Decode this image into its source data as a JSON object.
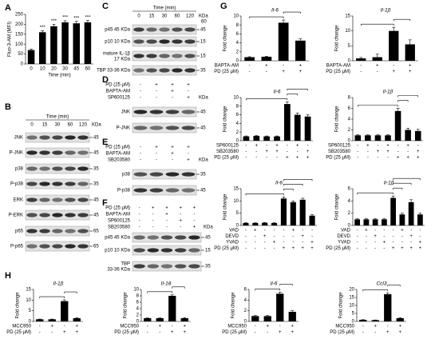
{
  "panel_labels": [
    "A",
    "B",
    "C",
    "D",
    "E",
    "F",
    "G",
    "H"
  ],
  "chart_data": [
    {
      "type": "bar",
      "ylabel": "Fluo-3-AM (MFI)",
      "xlabel": "Time (min)",
      "categories": [
        "0",
        "10",
        "20",
        "30",
        "45",
        "60"
      ],
      "values": [
        70,
        160,
        190,
        210,
        205,
        210
      ],
      "errors": [
        5,
        8,
        10,
        8,
        10,
        9
      ],
      "significance": [
        null,
        "***",
        "***",
        "***",
        "***",
        "***"
      ],
      "ylim": [
        0,
        250
      ],
      "yticks": [
        0,
        50,
        100,
        150,
        200,
        250
      ],
      "color": "#000000"
    },
    {
      "type": "bar",
      "title": "Il-6",
      "ylabel": "Fold change",
      "values": [
        0.8,
        0.9,
        8.5,
        4.5
      ],
      "errors": [
        0.1,
        0.1,
        0.6,
        0.4
      ],
      "ylim": [
        0,
        10
      ],
      "yticks": [
        0,
        2,
        4,
        6,
        8,
        10
      ],
      "color": "#000000",
      "conditions": [
        {
          "name": "BAPTA-AM",
          "signs": [
            "-",
            "+",
            "-",
            "+"
          ]
        },
        {
          "name": "PD (25 μM)",
          "signs": [
            "-",
            "-",
            "+",
            "+"
          ]
        }
      ],
      "comparisons": [
        {
          "from": 0,
          "to": 2,
          "label": "***"
        },
        {
          "from": 2,
          "to": 3,
          "label": "***"
        }
      ]
    },
    {
      "type": "bar",
      "title": "Il-1β",
      "ylabel": "Fold change",
      "values": [
        0.8,
        1.2,
        10,
        5.5
      ],
      "errors": [
        0.3,
        1,
        1.2,
        1.5
      ],
      "ylim": [
        0,
        15
      ],
      "yticks": [
        0,
        5,
        10,
        15
      ],
      "color": "#000000",
      "conditions": [
        {
          "name": "BAPTA-AM",
          "signs": [
            "-",
            "+",
            "-",
            "+"
          ]
        },
        {
          "name": "PD (25 μM)",
          "signs": [
            "-",
            "-",
            "+",
            "+"
          ]
        }
      ],
      "comparisons": [
        {
          "from": 0,
          "to": 2,
          "label": "***"
        },
        {
          "from": 2,
          "to": 3,
          "label": "***"
        }
      ]
    },
    {
      "type": "bar",
      "title": "Il-6",
      "ylabel": "Fold change",
      "values": [
        1,
        1.1,
        1,
        1,
        8.5,
        6,
        5.6
      ],
      "errors": [
        0.1,
        0.1,
        0.1,
        0.1,
        0.5,
        0.4,
        0.4
      ],
      "ylim": [
        0,
        10
      ],
      "yticks": [
        0,
        2,
        4,
        6,
        8,
        10
      ],
      "color": "#000000",
      "conditions": [
        {
          "name": "SP600125",
          "signs": [
            "-",
            "+",
            "-",
            "+",
            "-",
            "+",
            "-"
          ]
        },
        {
          "name": "SB203580",
          "signs": [
            "-",
            "-",
            "+",
            "+",
            "-",
            "-",
            "+"
          ]
        },
        {
          "name": "PD (25 μM)",
          "signs": [
            "-",
            "-",
            "-",
            "-",
            "+",
            "+",
            "+"
          ]
        }
      ],
      "comparisons": [
        {
          "from": 0,
          "to": 4,
          "label": "***"
        },
        {
          "from": 4,
          "to": 5,
          "label": "**"
        },
        {
          "from": 4,
          "to": 6,
          "label": "**"
        }
      ]
    },
    {
      "type": "bar",
      "title": "Il-1β",
      "ylabel": "Fold change",
      "values": [
        1,
        1,
        1,
        1,
        5.5,
        2,
        1.8
      ],
      "errors": [
        0.1,
        0.1,
        0.1,
        0.1,
        0.5,
        0.3,
        0.3
      ],
      "ylim": [
        0,
        8
      ],
      "yticks": [
        0,
        2,
        4,
        6,
        8
      ],
      "color": "#000000",
      "conditions": [
        {
          "name": "SP600125",
          "signs": [
            "-",
            "+",
            "-",
            "+",
            "-",
            "+",
            "-"
          ]
        },
        {
          "name": "SB203580",
          "signs": [
            "-",
            "-",
            "+",
            "+",
            "-",
            "-",
            "+"
          ]
        },
        {
          "name": "PD (25 μM)",
          "signs": [
            "-",
            "-",
            "-",
            "-",
            "+",
            "+",
            "+"
          ]
        }
      ],
      "comparisons": [
        {
          "from": 0,
          "to": 4,
          "label": "***"
        },
        {
          "from": 4,
          "to": 5,
          "label": "***"
        },
        {
          "from": 4,
          "to": 6,
          "label": "***"
        }
      ]
    },
    {
      "type": "bar",
      "title": "Il-6",
      "ylabel": "Fold change",
      "values": [
        1,
        1,
        1.1,
        1,
        11,
        9.5,
        10.5,
        4
      ],
      "errors": [
        0.1,
        0.1,
        0.1,
        0.1,
        0.6,
        0.5,
        0.6,
        0.4
      ],
      "ylim": [
        0,
        15
      ],
      "yticks": [
        0,
        5,
        10,
        15
      ],
      "color": "#000000",
      "conditions": [
        {
          "name": "VAD",
          "signs": [
            "-",
            "+",
            "-",
            "-",
            "-",
            "+",
            "-",
            "-"
          ]
        },
        {
          "name": "DEVD",
          "signs": [
            "-",
            "-",
            "+",
            "-",
            "-",
            "-",
            "+",
            "-"
          ]
        },
        {
          "name": "YVAD",
          "signs": [
            "-",
            "-",
            "-",
            "+",
            "-",
            "-",
            "-",
            "+"
          ]
        },
        {
          "name": "PD (25 μM)",
          "signs": [
            "-",
            "-",
            "-",
            "-",
            "+",
            "+",
            "+",
            "+"
          ]
        }
      ],
      "comparisons": [
        {
          "from": 0,
          "to": 4,
          "label": "***"
        },
        {
          "from": 4,
          "to": 5,
          "label": "*"
        },
        {
          "from": 4,
          "to": 6,
          "label": "ns"
        },
        {
          "from": 4,
          "to": 7,
          "label": "***"
        }
      ]
    },
    {
      "type": "bar",
      "title": "Il-1β",
      "ylabel": "Fold change",
      "values": [
        1,
        1,
        1,
        1,
        4.5,
        1.8,
        3.8,
        1.8
      ],
      "errors": [
        0.1,
        0.1,
        0.1,
        0.1,
        0.3,
        0.2,
        0.4,
        0.2
      ],
      "ylim": [
        0,
        6
      ],
      "yticks": [
        0,
        2,
        4,
        6
      ],
      "color": "#000000",
      "conditions": [
        {
          "name": "VAD",
          "signs": [
            "-",
            "+",
            "-",
            "-",
            "-",
            "+",
            "-",
            "-"
          ]
        },
        {
          "name": "DEVD",
          "signs": [
            "-",
            "-",
            "+",
            "-",
            "-",
            "-",
            "+",
            "-"
          ]
        },
        {
          "name": "YVAD",
          "signs": [
            "-",
            "-",
            "-",
            "+",
            "-",
            "-",
            "-",
            "+"
          ]
        },
        {
          "name": "PD (25 μM)",
          "signs": [
            "-",
            "-",
            "-",
            "-",
            "+",
            "+",
            "+",
            "+"
          ]
        }
      ],
      "comparisons": [
        {
          "from": 0,
          "to": 4,
          "label": "***"
        },
        {
          "from": 4,
          "to": 5,
          "label": "***"
        },
        {
          "from": 4,
          "to": 6,
          "label": "ns"
        },
        {
          "from": 4,
          "to": 7,
          "label": "***"
        }
      ]
    },
    {
      "type": "bar",
      "title": "Il-1β",
      "ylabel": "Fold change",
      "values": [
        1,
        1,
        9.5,
        1.5
      ],
      "errors": [
        0.1,
        0.1,
        0.6,
        0.3
      ],
      "ylim": [
        0,
        15
      ],
      "yticks": [
        0,
        5,
        10,
        15
      ],
      "color": "#000000",
      "conditions": [
        {
          "name": "MCC950",
          "signs": [
            "-",
            "+",
            "-",
            "+"
          ]
        },
        {
          "name": "PD (25 μM)",
          "signs": [
            "-",
            "-",
            "+",
            "+"
          ]
        }
      ],
      "comparisons": [
        {
          "from": 0,
          "to": 2,
          "label": "***"
        },
        {
          "from": 2,
          "to": 3,
          "label": "***"
        }
      ]
    },
    {
      "type": "bar",
      "title": "Il-18",
      "ylabel": "Fold change",
      "values": [
        1,
        1,
        8,
        1
      ],
      "errors": [
        0.1,
        0.1,
        0.3,
        0.2
      ],
      "ylim": [
        0,
        10
      ],
      "yticks": [
        0,
        2,
        4,
        6,
        8,
        10
      ],
      "color": "#000000",
      "conditions": [
        {
          "name": "MCC950",
          "signs": [
            "-",
            "+",
            "-",
            "+"
          ]
        },
        {
          "name": "PD (25 μM)",
          "signs": [
            "-",
            "-",
            "+",
            "+"
          ]
        }
      ],
      "comparisons": [
        {
          "from": 0,
          "to": 2,
          "label": "***"
        },
        {
          "from": 2,
          "to": 3,
          "label": "***"
        }
      ]
    },
    {
      "type": "bar",
      "title": "Il-6",
      "ylabel": "Fold change",
      "values": [
        1,
        1,
        5.2,
        1.8
      ],
      "errors": [
        0.1,
        0.1,
        0.3,
        0.2
      ],
      "ylim": [
        0,
        6
      ],
      "yticks": [
        0,
        2,
        4,
        6
      ],
      "color": "#000000",
      "conditions": [
        {
          "name": "MCC950",
          "signs": [
            "-",
            "+",
            "-",
            "+"
          ]
        },
        {
          "name": "PD (25 μM)",
          "signs": [
            "-",
            "-",
            "+",
            "+"
          ]
        }
      ],
      "comparisons": [
        {
          "from": 0,
          "to": 2,
          "label": "***"
        },
        {
          "from": 2,
          "to": 3,
          "label": "***"
        }
      ]
    },
    {
      "type": "bar",
      "title": "Ccl3",
      "ylabel": "Fold change",
      "values": [
        1,
        0.8,
        17,
        2
      ],
      "errors": [
        0.1,
        0.1,
        0.8,
        0.3
      ],
      "ylim": [
        0,
        20
      ],
      "yticks": [
        0,
        5,
        10,
        15,
        20
      ],
      "color": "#000000",
      "conditions": [
        {
          "name": "MCC950",
          "signs": [
            "-",
            "+",
            "-",
            "+"
          ]
        },
        {
          "name": "PD (25 μM)",
          "signs": [
            "-",
            "-",
            "+",
            "+"
          ]
        }
      ],
      "comparisons": [
        {
          "from": 0,
          "to": 2,
          "label": "***"
        },
        {
          "from": 2,
          "to": 3,
          "label": "***"
        }
      ]
    }
  ],
  "blots": [
    {
      "header": "Time (min)",
      "columns": [
        "0",
        "15",
        "30",
        "60",
        "120"
      ],
      "unit": "KDa",
      "rows": [
        {
          "label": "JNK",
          "kda": "45"
        },
        {
          "label": "P-JNK",
          "kda": "45"
        },
        {
          "label": "p38",
          "kda": "35"
        },
        {
          "label": "P-p38",
          "kda": "35"
        },
        {
          "label": "ERK",
          "kda": "45"
        },
        {
          "label": "P-ERK",
          "kda": "45"
        },
        {
          "label": "p65",
          "kda": "65"
        },
        {
          "label": "P-p65",
          "kda": "65"
        }
      ]
    },
    {
      "header": "Time (min)",
      "columns": [
        "0",
        "15",
        "30",
        "60",
        "120"
      ],
      "unit": "KDa",
      "top_marker": "60",
      "rows": [
        {
          "label": "p45 45 KDa",
          "kda": "45"
        },
        {
          "label": "p10 10 KDa",
          "kda": "15"
        },
        {
          "label": "mature IL-1β",
          "sublabel": "17 KDa",
          "kda": "15"
        },
        {
          "label": "TBP 33-36 KDa",
          "kda": "35"
        }
      ]
    },
    {
      "unit": "KDa",
      "conditions": [
        {
          "name": "PD (25 μM)",
          "signs": [
            "-",
            "+",
            "+",
            "+"
          ]
        },
        {
          "name": "BAPTA-AM",
          "signs": [
            "-",
            "-",
            "+",
            "-"
          ]
        },
        {
          "name": "SP600125",
          "signs": [
            "-",
            "-",
            "-",
            "+"
          ]
        }
      ],
      "rows": [
        {
          "label": "JNK",
          "kda": "45"
        },
        {
          "label": "P-JNK",
          "kda": "45"
        }
      ]
    },
    {
      "unit": "KDa",
      "conditions": [
        {
          "name": "PD (25 μM)",
          "signs": [
            "-",
            "+",
            "+",
            "+"
          ]
        },
        {
          "name": "BAPTA-AM",
          "signs": [
            "-",
            "-",
            "+",
            "-"
          ]
        },
        {
          "name": "SB203580",
          "signs": [
            "-",
            "-",
            "-",
            "+"
          ]
        }
      ],
      "rows": [
        {
          "label": "p38",
          "kda": "35"
        },
        {
          "label": "P-p38",
          "kda": "45"
        }
      ]
    },
    {
      "unit": "KDa",
      "conditions": [
        {
          "name": "PD (25 μM)",
          "signs": [
            "-",
            "+",
            "+",
            "+",
            "+"
          ]
        },
        {
          "name": "BAPTA-AM",
          "signs": [
            "-",
            "-",
            "+",
            "-",
            "-"
          ]
        },
        {
          "name": "SP600125",
          "signs": [
            "-",
            "-",
            "-",
            "+",
            "-"
          ]
        },
        {
          "name": "SB203580",
          "signs": [
            "-",
            "-",
            "-",
            "-",
            "+"
          ]
        }
      ],
      "rows": [
        {
          "label": "p45 45 KDa",
          "kda": "45"
        },
        {
          "label": "p10 10 KDa",
          "kda": "15"
        },
        {
          "label": "TBP",
          "sublabel": "33-36 KDa",
          "kda": "35"
        }
      ]
    }
  ]
}
